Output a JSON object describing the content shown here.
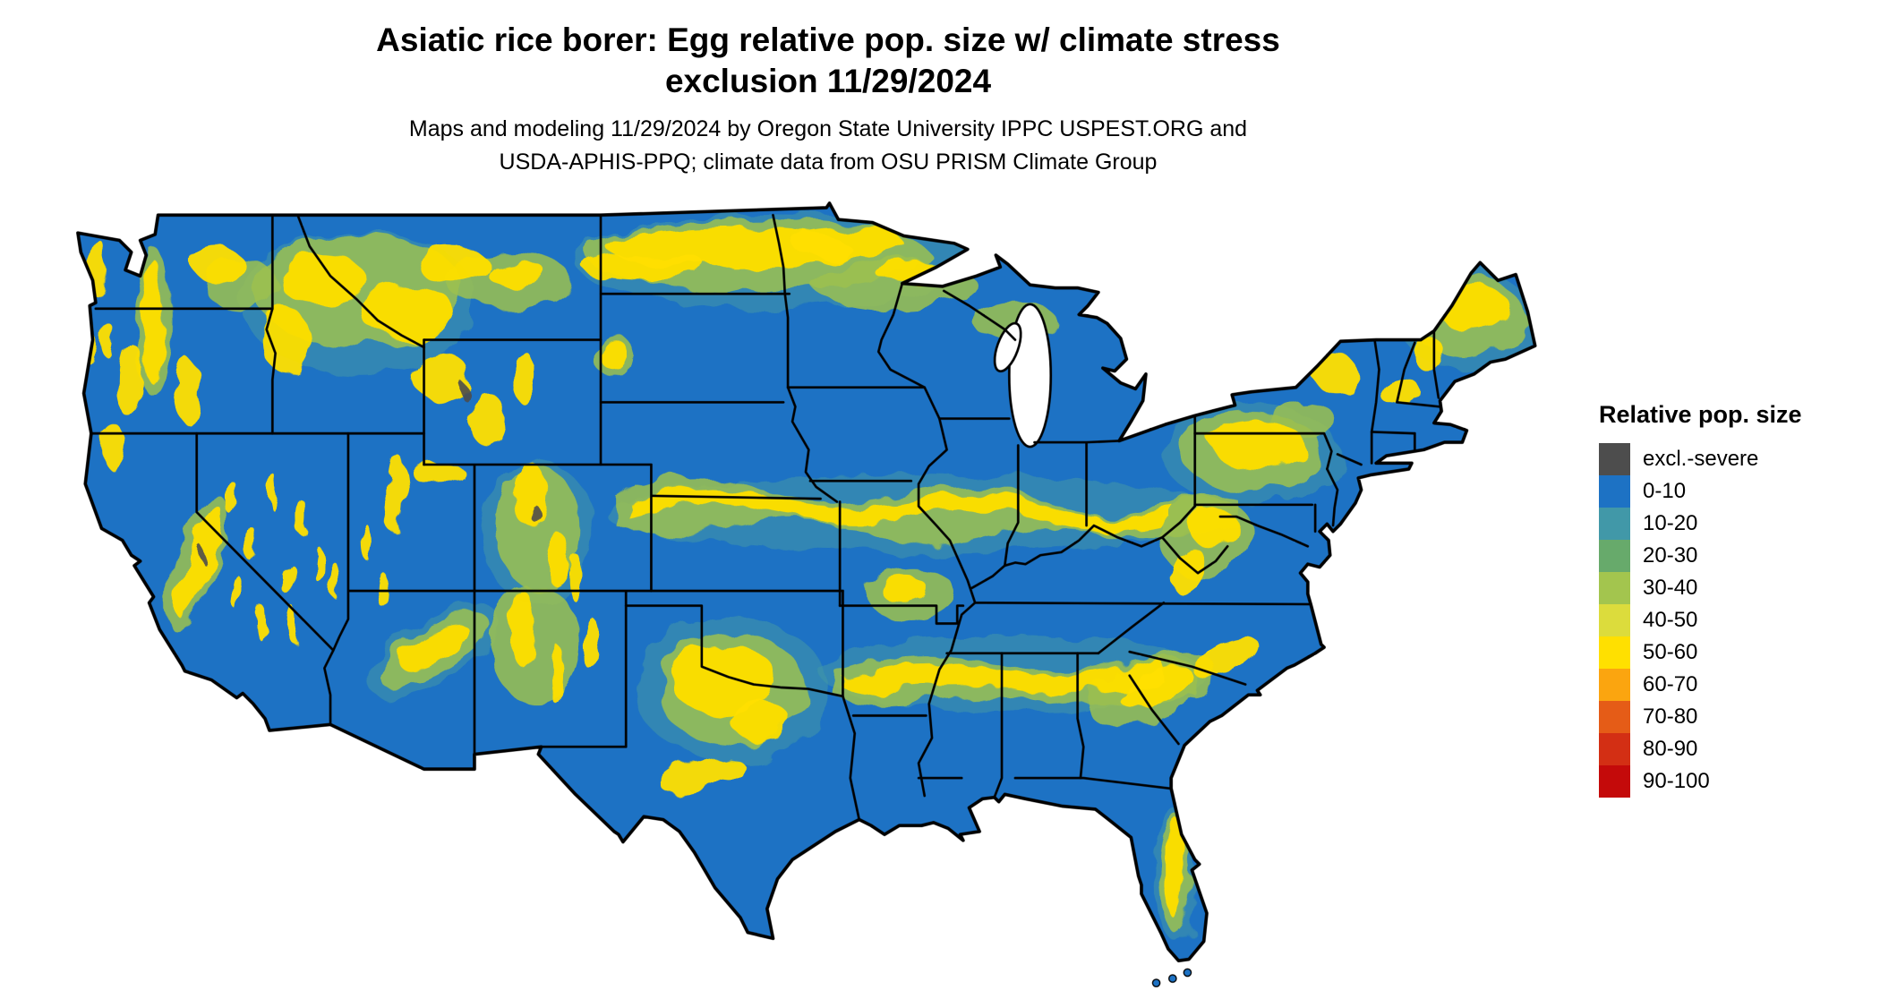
{
  "title": {
    "line1": "Asiatic rice borer: Egg relative pop. size w/ climate stress",
    "line2": "exclusion 11/29/2024"
  },
  "subtitle": {
    "line1": "Maps and modeling 11/29/2024 by Oregon State University IPPC USPEST.ORG and",
    "line2": "USDA-APHIS-PPQ; climate data from OSU PRISM Climate Group"
  },
  "legend": {
    "title": "Relative pop. size",
    "items": [
      {
        "label": "excl.-severe",
        "color": "#4d4d4d"
      },
      {
        "label": "0-10",
        "color": "#1d72c4"
      },
      {
        "label": "10-20",
        "color": "#4198a8"
      },
      {
        "label": "20-30",
        "color": "#67aa6b"
      },
      {
        "label": "30-40",
        "color": "#a3c54e"
      },
      {
        "label": "40-50",
        "color": "#dcdc3c"
      },
      {
        "label": "50-60",
        "color": "#ffe000"
      },
      {
        "label": "60-70",
        "color": "#fba50f"
      },
      {
        "label": "70-80",
        "color": "#e55c17"
      },
      {
        "label": "80-90",
        "color": "#d32f14"
      },
      {
        "label": "90-100",
        "color": "#c40a0a"
      }
    ]
  },
  "map": {
    "colors": {
      "base": "#1d72c4",
      "hi": "#ffdf00",
      "green": "#9cc14f",
      "teal": "#4198a8",
      "severe": "#4d4d4d",
      "water": "#ffffff",
      "border": "#000000"
    }
  }
}
